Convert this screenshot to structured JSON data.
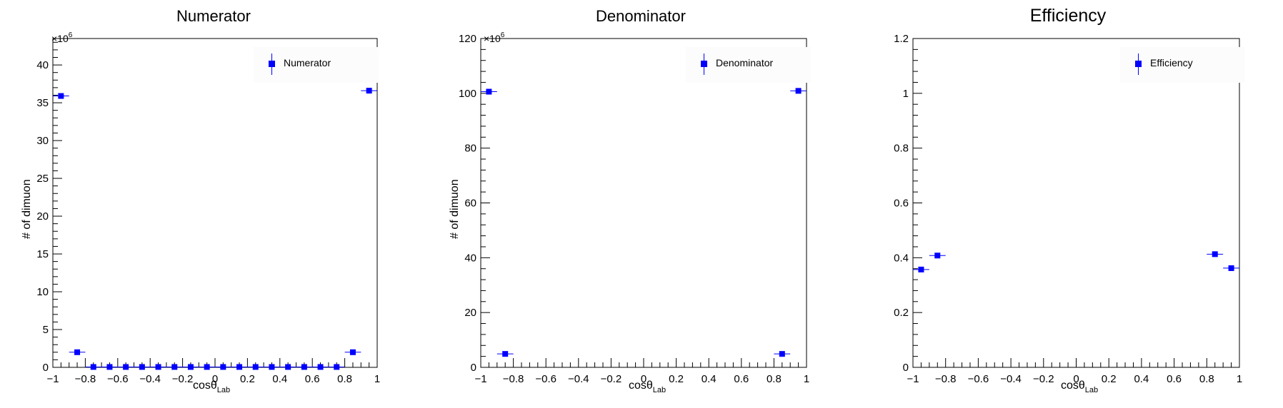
{
  "chart_data": [
    {
      "type": "scatter",
      "title": "Numerator",
      "xlabel": "cosθ",
      "xlabel_sub": "Lab",
      "ylabel": "# of dimuon",
      "y_multiplier": "×10",
      "y_multiplier_exp": "6",
      "xlim": [
        -1,
        1
      ],
      "ylim": [
        0,
        43.5
      ],
      "xticks": [
        -1,
        -0.8,
        -0.6,
        -0.4,
        -0.2,
        0,
        0.2,
        0.4,
        0.6,
        0.8,
        1
      ],
      "xtick_labels": [
        "−1",
        "−0.8",
        "−0.6",
        "−0.4",
        "−0.2",
        "0",
        "0.2",
        "0.4",
        "0.6",
        "0.8",
        "1"
      ],
      "yticks": [
        0,
        5,
        10,
        15,
        20,
        25,
        30,
        35,
        40
      ],
      "ytick_labels": [
        "0",
        "5",
        "10",
        "15",
        "20",
        "25",
        "30",
        "35",
        "40"
      ],
      "legend": {
        "label": "Numerator",
        "position": "top-right"
      },
      "color": "#0000ff",
      "bin_half_width": 0.05,
      "x": [
        -0.95,
        -0.85,
        -0.75,
        -0.65,
        -0.55,
        -0.45,
        -0.35,
        -0.25,
        -0.15,
        -0.05,
        0.05,
        0.15,
        0.25,
        0.35,
        0.45,
        0.55,
        0.65,
        0.75,
        0.85,
        0.95
      ],
      "y": [
        35.9,
        2.0,
        0.05,
        0.05,
        0.05,
        0.05,
        0.05,
        0.05,
        0.05,
        0.05,
        0.05,
        0.05,
        0.05,
        0.05,
        0.05,
        0.05,
        0.05,
        0.05,
        2.0,
        36.6
      ]
    },
    {
      "type": "scatter",
      "title": "Denominator",
      "xlabel": "cosθ",
      "xlabel_sub": "Lab",
      "ylabel": "# of dimuon",
      "y_multiplier": "×10",
      "y_multiplier_exp": "6",
      "xlim": [
        -1,
        1
      ],
      "ylim": [
        0,
        120
      ],
      "xticks": [
        -1,
        -0.8,
        -0.6,
        -0.4,
        -0.2,
        0,
        0.2,
        0.4,
        0.6,
        0.8,
        1
      ],
      "xtick_labels": [
        "−1",
        "−0.8",
        "−0.6",
        "−0.4",
        "−0.2",
        "0",
        "0.2",
        "0.4",
        "0.6",
        "0.8",
        "1"
      ],
      "yticks": [
        0,
        20,
        40,
        60,
        80,
        100,
        120
      ],
      "ytick_labels": [
        "0",
        "20",
        "40",
        "60",
        "80",
        "100",
        "120"
      ],
      "legend": {
        "label": "Denominator",
        "position": "top-right"
      },
      "color": "#0000ff",
      "bin_half_width": 0.05,
      "x": [
        -0.95,
        -0.85,
        0.85,
        0.95
      ],
      "y": [
        100.6,
        4.9,
        4.9,
        100.9
      ]
    },
    {
      "type": "scatter",
      "title": "Efficiency",
      "xlabel": "cosθ",
      "xlabel_sub": "Lab",
      "ylabel": "",
      "xlim": [
        -1,
        1
      ],
      "ylim": [
        0,
        1.2
      ],
      "xticks": [
        -1,
        -0.8,
        -0.6,
        -0.4,
        -0.2,
        0,
        0.2,
        0.4,
        0.6,
        0.8,
        1
      ],
      "xtick_labels": [
        "−1",
        "−0.8",
        "−0.6",
        "−0.4",
        "−0.2",
        "0",
        "0.2",
        "0.4",
        "0.6",
        "0.8",
        "1"
      ],
      "yticks": [
        0,
        0.2,
        0.4,
        0.6,
        0.8,
        1,
        1.2
      ],
      "ytick_labels": [
        "0",
        "0.2",
        "0.4",
        "0.6",
        "0.8",
        "1",
        "1.2"
      ],
      "legend": {
        "label": "Efficiency",
        "position": "top-right"
      },
      "color": "#0000ff",
      "bin_half_width": 0.05,
      "x": [
        -0.95,
        -0.85,
        0.85,
        0.95
      ],
      "y": [
        0.357,
        0.408,
        0.413,
        0.362
      ]
    }
  ]
}
